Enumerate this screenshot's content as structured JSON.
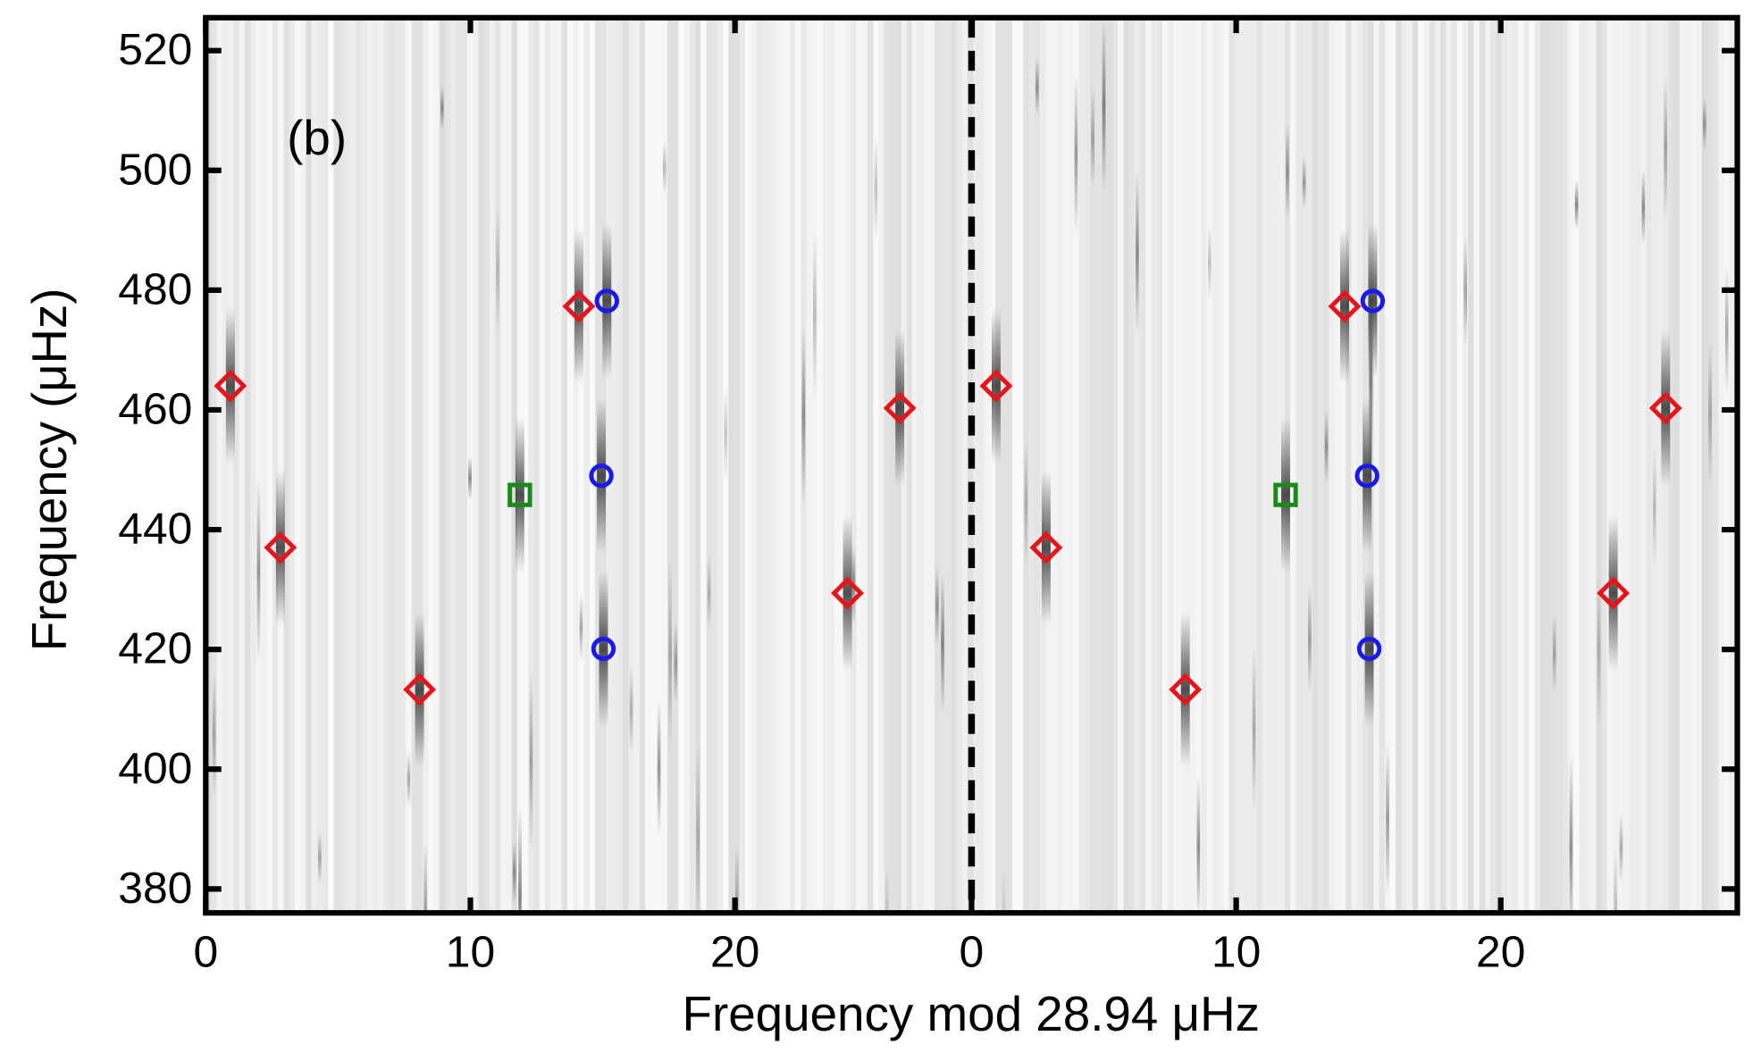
{
  "chart_data": {
    "type": "scatter",
    "annotation": "(b)",
    "x_label": "Frequency mod 28.94 μHz",
    "y_label": "Frequency (μHz)",
    "xlim": [
      0,
      57.88
    ],
    "ylim": [
      376,
      525.5
    ],
    "xticks": [
      0,
      10,
      20,
      {
        "value": 28.94,
        "label": "0"
      },
      {
        "value": 38.94,
        "label": "10"
      },
      {
        "value": 48.94,
        "label": "20"
      }
    ],
    "yticks": [
      380,
      400,
      420,
      440,
      460,
      480,
      500,
      520
    ],
    "divider": 28.94,
    "series": [
      {
        "marker": "diamond",
        "color": "#e8141c",
        "x": [
          0.93,
          2.82,
          8.08,
          14.1,
          24.25,
          26.23,
          29.87,
          31.76,
          37.02,
          43.04,
          53.19,
          55.17
        ],
        "values": [
          464.0,
          437.0,
          413.3,
          477.3,
          429.4,
          460.3,
          464.0,
          437.0,
          413.3,
          477.3,
          429.4,
          460.3
        ]
      },
      {
        "marker": "circle",
        "color": "#1a1aee",
        "x": [
          15.16,
          14.95,
          15.03,
          44.1,
          43.89,
          43.97
        ],
        "values": [
          478.2,
          449.0,
          420.1,
          478.2,
          449.0,
          420.1
        ]
      },
      {
        "marker": "square",
        "color": "#1a8a1a",
        "x": [
          11.87,
          40.81
        ],
        "values": [
          445.8,
          445.8
        ]
      }
    ]
  }
}
